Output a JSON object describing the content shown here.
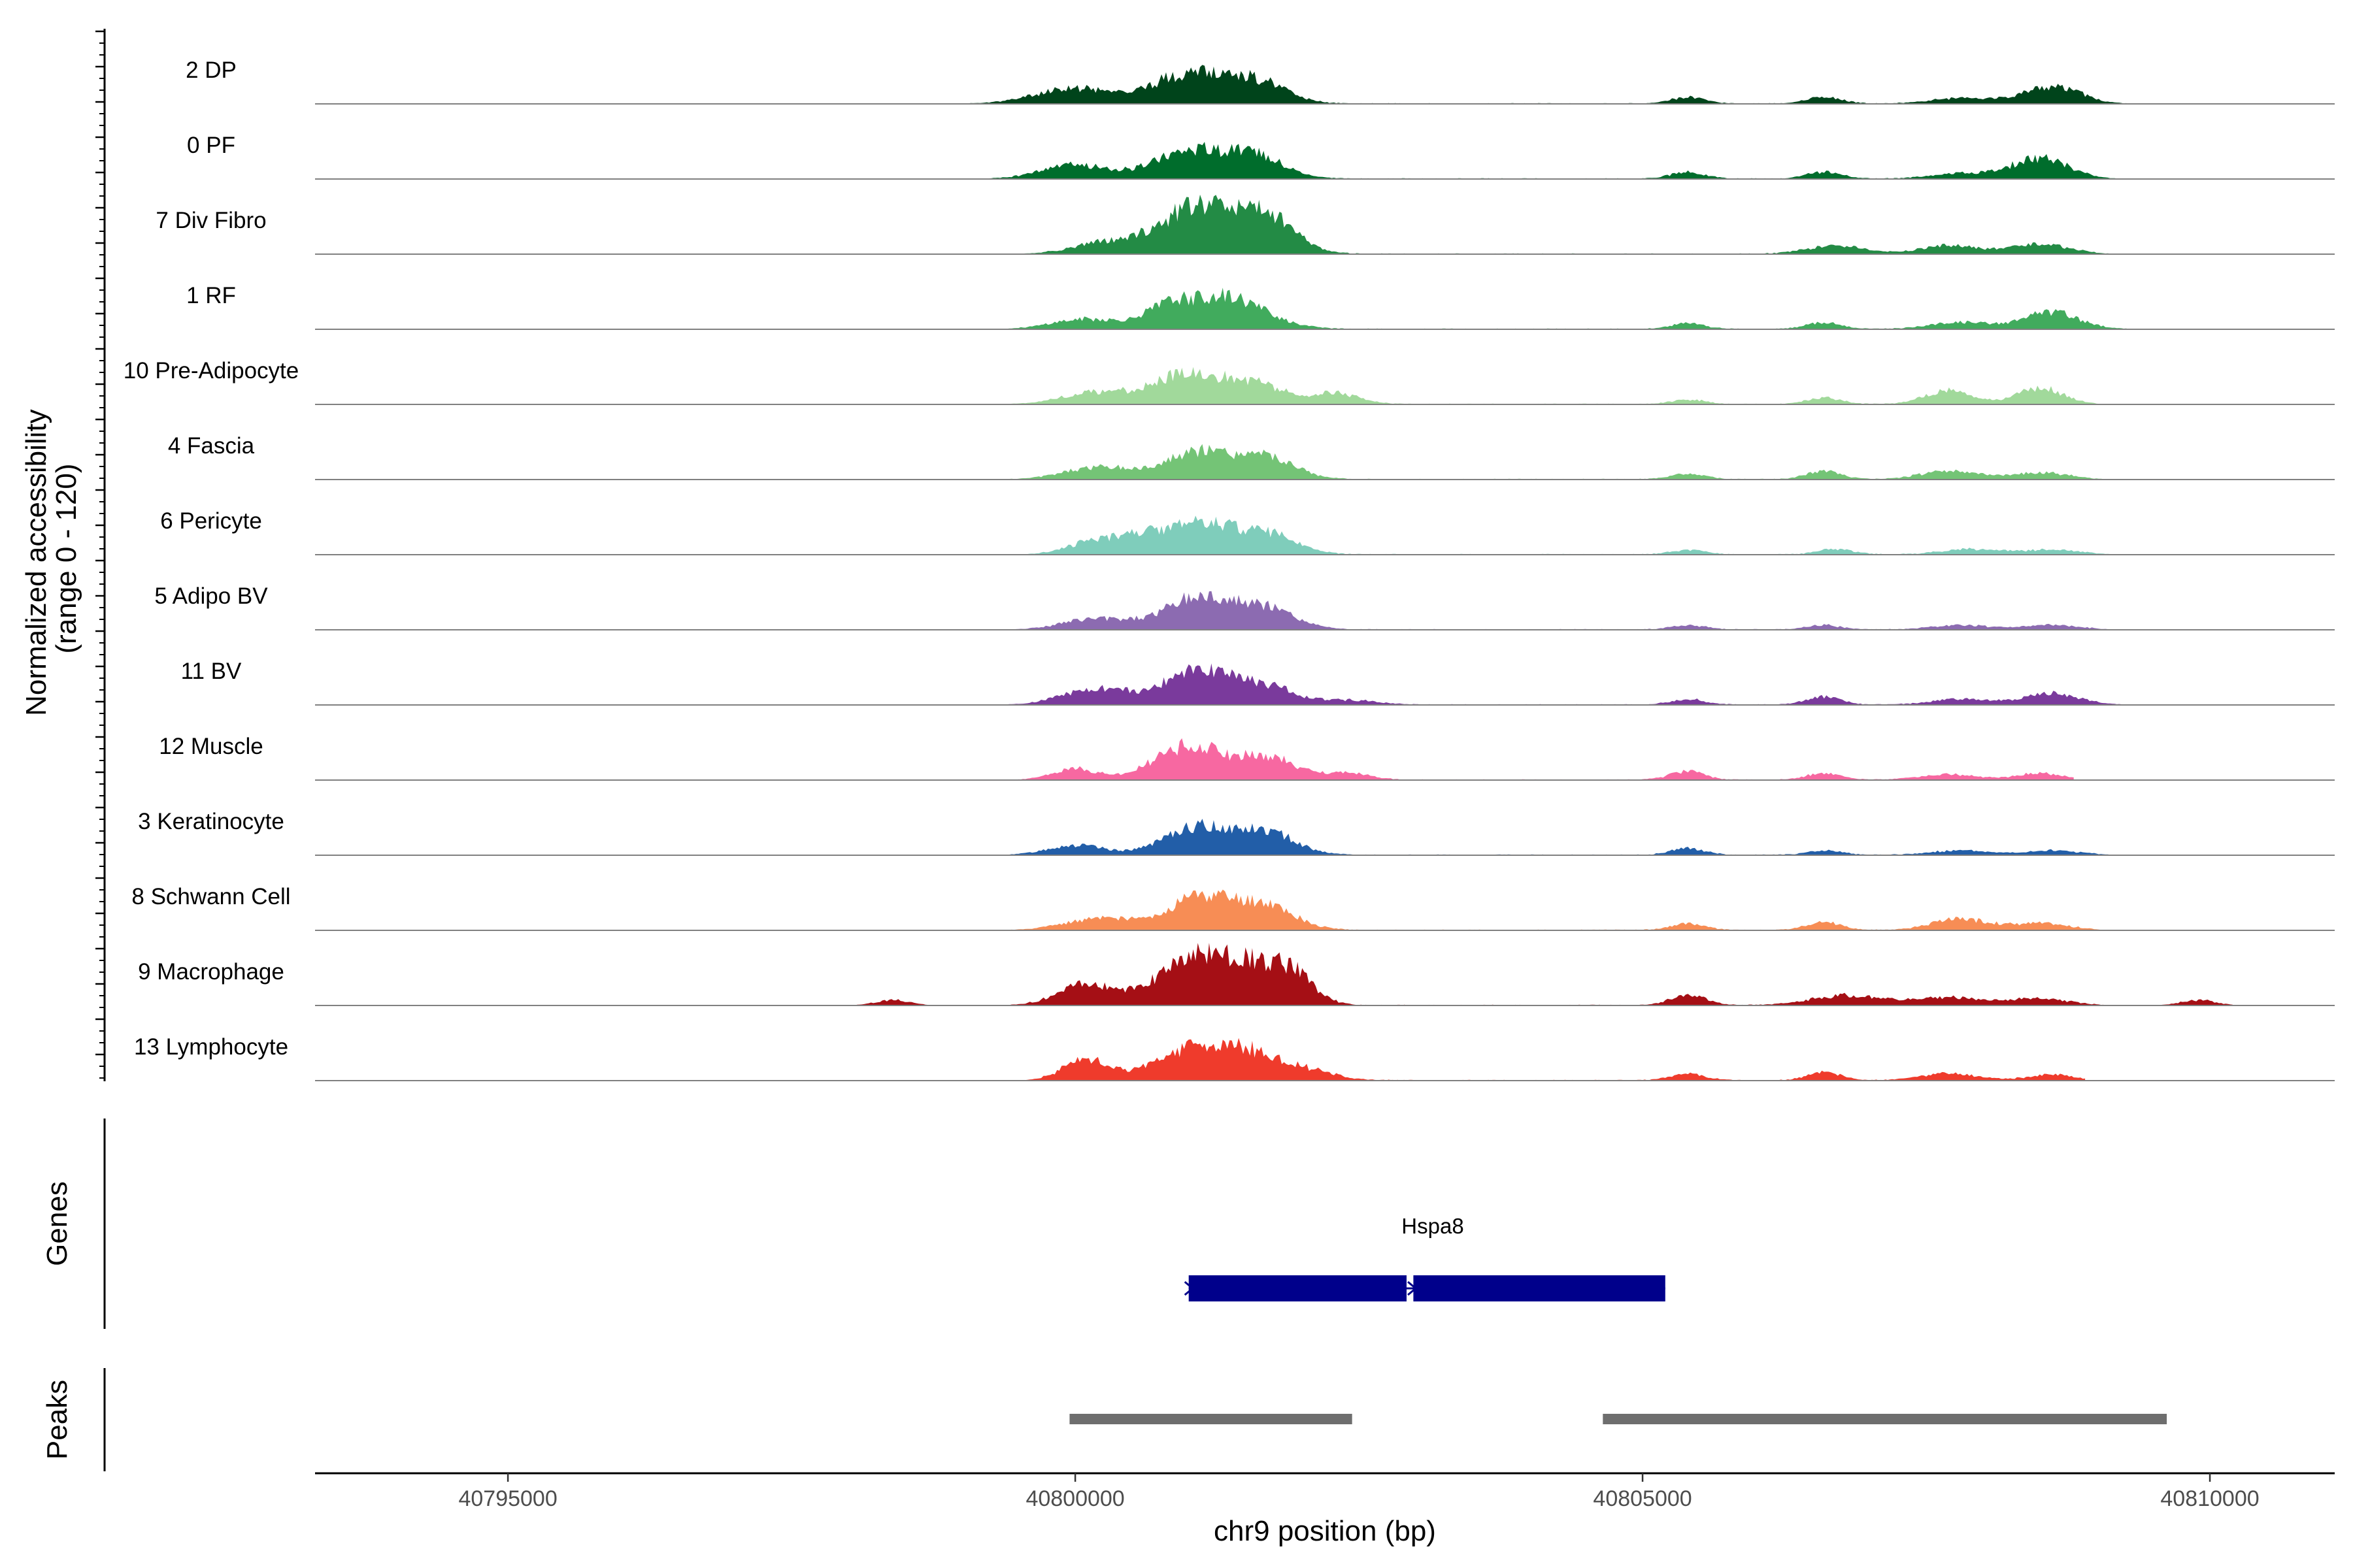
{
  "chart_data": {
    "type": "area",
    "title": "",
    "chromosome": "chr9",
    "xlabel": "chr9 position (bp)",
    "ylabel_line1": "Normalized accessibility",
    "ylabel_line2": "(range 0 - 120)",
    "ylim": [
      0,
      120
    ],
    "xlim": [
      40793300,
      40811100
    ],
    "x_ticks": [
      40795000,
      40800000,
      40805000,
      40810000
    ],
    "x_tick_labels": [
      "40795000",
      "40800000",
      "40805000",
      "40810000"
    ],
    "tracks": [
      {
        "name": "2 DP",
        "color": "#00441b",
        "start": 40793300,
        "end": 40811100,
        "peaks": [
          [
            40800000,
            28,
            350
          ],
          [
            40801000,
            55,
            300
          ],
          [
            40801600,
            40,
            250
          ],
          [
            40805400,
            12,
            150
          ],
          [
            40806600,
            12,
            150
          ],
          [
            40807800,
            10,
            250
          ],
          [
            40808600,
            32,
            250
          ]
        ]
      },
      {
        "name": "0 PF",
        "color": "#006d2c",
        "start": 40793300,
        "end": 40810100,
        "peaks": [
          [
            40800000,
            25,
            300
          ],
          [
            40801000,
            52,
            300
          ],
          [
            40801600,
            40,
            250
          ],
          [
            40805400,
            12,
            150
          ],
          [
            40806600,
            12,
            150
          ],
          [
            40807800,
            10,
            250
          ],
          [
            40808500,
            38,
            250
          ]
        ]
      },
      {
        "name": "7 Div Fibro",
        "color": "#238b45",
        "start": 40793300,
        "end": 40811100,
        "peaks": [
          [
            40800300,
            22,
            300
          ],
          [
            40801100,
            90,
            320
          ],
          [
            40801700,
            60,
            250
          ],
          [
            40806700,
            15,
            250
          ],
          [
            40807700,
            15,
            250
          ],
          [
            40808500,
            18,
            250
          ]
        ]
      },
      {
        "name": "1 RF",
        "color": "#41ab5d",
        "start": 40793300,
        "end": 40811100,
        "peaks": [
          [
            40800100,
            18,
            300
          ],
          [
            40800800,
            25,
            200
          ],
          [
            40801300,
            60,
            350
          ],
          [
            40805400,
            10,
            150
          ],
          [
            40806600,
            12,
            150
          ],
          [
            40807800,
            12,
            250
          ],
          [
            40808600,
            30,
            250
          ]
        ]
      },
      {
        "name": "10 Pre-Adipocyte",
        "color": "#a1d99b",
        "start": 40793300,
        "end": 40810100,
        "peaks": [
          [
            40800200,
            22,
            300
          ],
          [
            40801000,
            55,
            300
          ],
          [
            40801600,
            35,
            250
          ],
          [
            40802300,
            20,
            200
          ],
          [
            40805400,
            8,
            150
          ],
          [
            40806600,
            12,
            150
          ],
          [
            40807700,
            25,
            200
          ],
          [
            40808500,
            30,
            200
          ]
        ]
      },
      {
        "name": "4 Fascia",
        "color": "#74c476",
        "start": 40793300,
        "end": 40811100,
        "peaks": [
          [
            40800200,
            22,
            300
          ],
          [
            40801100,
            50,
            300
          ],
          [
            40801700,
            35,
            250
          ],
          [
            40805400,
            10,
            150
          ],
          [
            40806600,
            15,
            150
          ],
          [
            40807700,
            15,
            250
          ],
          [
            40808500,
            12,
            250
          ]
        ]
      },
      {
        "name": "6 Pericyte",
        "color": "#7fcdbb",
        "start": 40793300,
        "end": 40811100,
        "peaks": [
          [
            40800200,
            25,
            250
          ],
          [
            40800600,
            20,
            200
          ],
          [
            40801100,
            55,
            300
          ],
          [
            40801700,
            35,
            250
          ],
          [
            40805400,
            8,
            150
          ],
          [
            40806700,
            10,
            150
          ],
          [
            40807900,
            10,
            250
          ],
          [
            40808600,
            8,
            250
          ]
        ]
      },
      {
        "name": "5 Adipo BV",
        "color": "#8c6bb1",
        "start": 40793300,
        "end": 40811100,
        "peaks": [
          [
            40800200,
            20,
            300
          ],
          [
            40801100,
            60,
            300
          ],
          [
            40801700,
            35,
            250
          ],
          [
            40805400,
            8,
            150
          ],
          [
            40806600,
            8,
            150
          ],
          [
            40807800,
            8,
            250
          ],
          [
            40808600,
            8,
            250
          ]
        ]
      },
      {
        "name": "11 BV",
        "color": "#7a3a9c",
        "start": 40793300,
        "end": 40811100,
        "peaks": [
          [
            40800200,
            30,
            300
          ],
          [
            40801100,
            62,
            300
          ],
          [
            40801700,
            30,
            250
          ],
          [
            40802400,
            8,
            250
          ],
          [
            40805400,
            10,
            150
          ],
          [
            40806600,
            14,
            150
          ],
          [
            40807800,
            10,
            250
          ],
          [
            40808600,
            20,
            250
          ]
        ]
      },
      {
        "name": "12 Muscle",
        "color": "#f768a1",
        "start": 40793300,
        "end": 40808800,
        "peaks": [
          [
            40800000,
            20,
            200
          ],
          [
            40801000,
            62,
            300
          ],
          [
            40801700,
            40,
            250
          ],
          [
            40802400,
            12,
            200
          ],
          [
            40805400,
            16,
            150
          ],
          [
            40806600,
            12,
            150
          ],
          [
            40807700,
            10,
            250
          ],
          [
            40808500,
            12,
            200
          ]
        ]
      },
      {
        "name": "3 Keratinocyte",
        "color": "#225ea8",
        "start": 40793300,
        "end": 40810100,
        "peaks": [
          [
            40800000,
            18,
            250
          ],
          [
            40801100,
            52,
            300
          ],
          [
            40801700,
            38,
            250
          ],
          [
            40805400,
            12,
            150
          ],
          [
            40806600,
            8,
            150
          ],
          [
            40807800,
            8,
            250
          ],
          [
            40808600,
            8,
            250
          ]
        ]
      },
      {
        "name": "8 Schwann Cell",
        "color": "#f78d55",
        "start": 40793300,
        "end": 40811100,
        "peaks": [
          [
            40800200,
            20,
            300
          ],
          [
            40801100,
            60,
            300
          ],
          [
            40801700,
            40,
            250
          ],
          [
            40805400,
            12,
            150
          ],
          [
            40806600,
            14,
            150
          ],
          [
            40807800,
            20,
            250
          ],
          [
            40808500,
            12,
            250
          ]
        ]
      },
      {
        "name": "9 Macrophage",
        "color": "#a50f15",
        "start": 40793300,
        "end": 40810200,
        "peaks": [
          [
            40798400,
            10,
            150
          ],
          [
            40800100,
            38,
            250
          ],
          [
            40801000,
            80,
            300
          ],
          [
            40801500,
            60,
            250
          ],
          [
            40801900,
            55,
            200
          ],
          [
            40805400,
            20,
            150
          ],
          [
            40806800,
            18,
            300
          ],
          [
            40807700,
            14,
            300
          ],
          [
            40808500,
            12,
            250
          ],
          [
            40809900,
            10,
            150
          ]
        ]
      },
      {
        "name": "13 Lymphocyte",
        "color": "#ef3b2c",
        "start": 40793300,
        "end": 40808900,
        "peaks": [
          [
            40800100,
            40,
            200
          ],
          [
            40801000,
            55,
            300
          ],
          [
            40801500,
            45,
            250
          ],
          [
            40802000,
            20,
            250
          ],
          [
            40805400,
            12,
            150
          ],
          [
            40806600,
            14,
            150
          ],
          [
            40807700,
            12,
            250
          ],
          [
            40808600,
            10,
            200
          ]
        ]
      }
    ],
    "genes_label": "Genes",
    "genes": [
      {
        "name": "Hspa8",
        "strand": "+",
        "color": "#00008b",
        "exons": [
          [
            40801000,
            40802920
          ],
          [
            40802980,
            40805200
          ]
        ]
      }
    ],
    "peaks_label": "Peaks",
    "peaks_color": "#6e6e6e",
    "peak_regions": [
      [
        40799950,
        40802440
      ],
      [
        40804650,
        40809620
      ]
    ]
  }
}
